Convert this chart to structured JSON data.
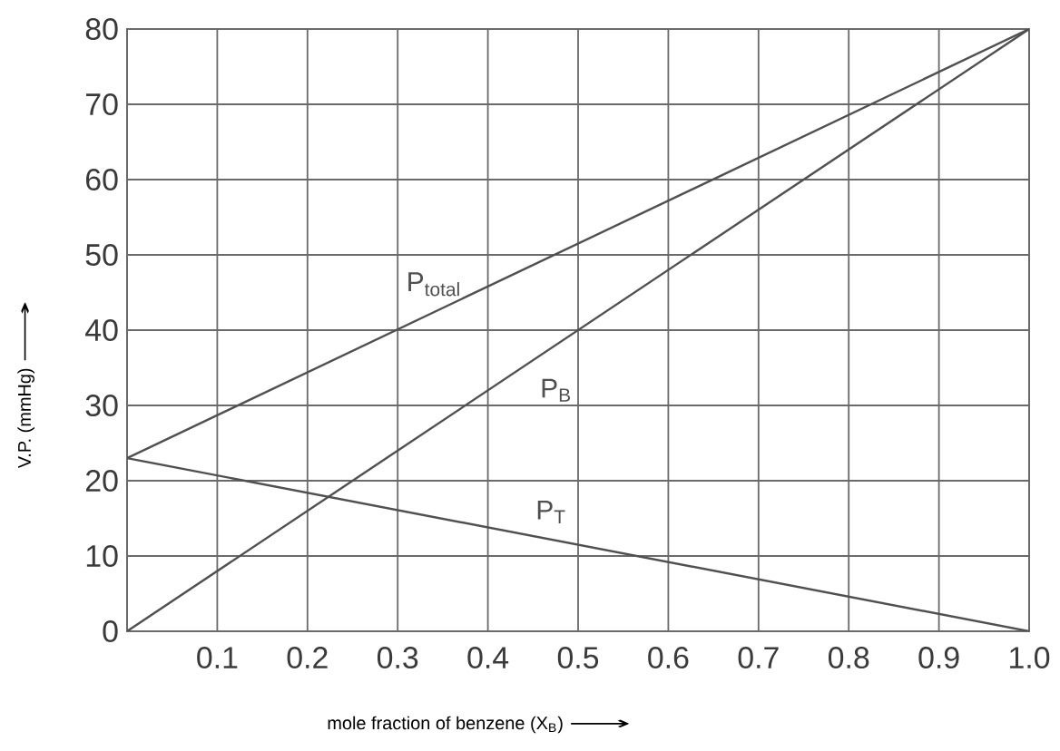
{
  "chart_data": {
    "type": "line",
    "xlabel": "mole fraction of benzene (X$_{B}$) ⟶",
    "ylabel": "V.P. (mmHg) ⟶",
    "x": [
      0,
      1
    ],
    "series": [
      {
        "name": "P$_{total}$",
        "color": "#505050",
        "values": [
          23,
          80
        ]
      },
      {
        "name": "P$_{B}$",
        "color": "#505050",
        "values": [
          0,
          80
        ]
      },
      {
        "name": "P$_{T}$",
        "color": "#505050",
        "values": [
          23,
          0
        ]
      }
    ],
    "xlim": [
      0,
      1
    ],
    "ylim": [
      0,
      80
    ],
    "xticks": [
      0.1,
      0.2,
      0.3,
      0.4,
      0.5,
      0.6,
      0.7,
      0.8,
      0.9,
      {
        "value": 1,
        "label": "1.0"
      }
    ],
    "yticks": [
      0,
      10,
      20,
      30,
      40,
      50,
      60,
      70,
      80
    ],
    "grid": true,
    "marker": "none",
    "line_style": "solid"
  }
}
